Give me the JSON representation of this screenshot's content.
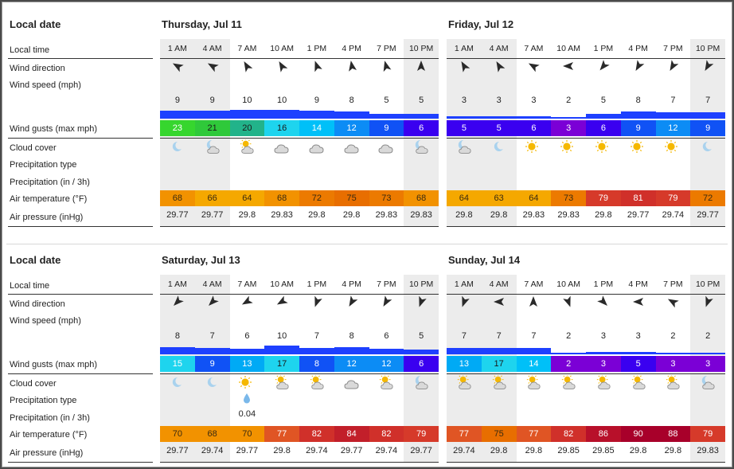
{
  "row_labels": {
    "local_date": "Local date",
    "local_time": "Local time",
    "wind_direction": "Wind direction",
    "wind_speed": "Wind speed  (mph)",
    "wind_gusts": "Wind gusts  (max mph)",
    "cloud_cover": "Cloud cover",
    "precip_type": "Precipitation type",
    "precipitation": "Precipitation  (in / 3h)",
    "air_temperature": "Air temperature  (°F)",
    "air_pressure": "Air pressure  (inHg)"
  },
  "hours": [
    "1 AM",
    "4 AM",
    "7 AM",
    "10 AM",
    "1 PM",
    "4 PM",
    "7 PM",
    "10 PM"
  ],
  "night_columns": [
    0,
    1,
    7
  ],
  "days": [
    {
      "title": "Thursday, Jul 11",
      "wind_dir_deg": [
        300,
        300,
        330,
        330,
        340,
        350,
        345,
        360
      ],
      "wind_speed": [
        "9",
        "9",
        "10",
        "10",
        "9",
        "8",
        "5",
        "5"
      ],
      "wind_speed_num": [
        9,
        9,
        10,
        10,
        9,
        8,
        5,
        5
      ],
      "wind_gusts": [
        "23",
        "21",
        "20",
        "16",
        "14",
        "12",
        "9",
        "6"
      ],
      "cloud": [
        "moon",
        "moon-cloud",
        "sun-cloud",
        "cloud",
        "cloud",
        "cloud",
        "cloud",
        "moon-cloud"
      ],
      "precip_type": [
        "",
        "",
        "",
        "",
        "",
        "",
        "",
        ""
      ],
      "precipitation": [
        "",
        "",
        "",
        "",
        "",
        "",
        "",
        ""
      ],
      "temperature": [
        "68",
        "66",
        "64",
        "68",
        "72",
        "75",
        "73",
        "68"
      ],
      "pressure": [
        "29.77",
        "29.77",
        "29.8",
        "29.83",
        "29.8",
        "29.8",
        "29.83",
        "29.83"
      ]
    },
    {
      "title": "Friday, Jul 12",
      "wind_dir_deg": [
        330,
        330,
        300,
        270,
        220,
        210,
        210,
        210
      ],
      "wind_speed": [
        "3",
        "3",
        "3",
        "2",
        "5",
        "8",
        "7",
        "7"
      ],
      "wind_speed_num": [
        3,
        3,
        3,
        2,
        5,
        8,
        7,
        7
      ],
      "wind_gusts": [
        "5",
        "5",
        "6",
        "3",
        "6",
        "9",
        "12",
        "9"
      ],
      "cloud": [
        "moon-cloud",
        "moon",
        "sun",
        "sun",
        "sun",
        "sun",
        "sun",
        "moon"
      ],
      "precip_type": [
        "",
        "",
        "",
        "",
        "",
        "",
        "",
        ""
      ],
      "precipitation": [
        "",
        "",
        "",
        "",
        "",
        "",
        "",
        ""
      ],
      "temperature": [
        "64",
        "63",
        "64",
        "73",
        "79",
        "81",
        "79",
        "72"
      ],
      "pressure": [
        "29.8",
        "29.8",
        "29.83",
        "29.83",
        "29.8",
        "29.77",
        "29.74",
        "29.77"
      ]
    },
    {
      "title": "Saturday, Jul 13",
      "wind_dir_deg": [
        225,
        225,
        240,
        240,
        200,
        210,
        210,
        200
      ],
      "wind_speed": [
        "8",
        "7",
        "6",
        "10",
        "7",
        "8",
        "6",
        "5"
      ],
      "wind_speed_num": [
        8,
        7,
        6,
        10,
        7,
        8,
        6,
        5
      ],
      "wind_gusts": [
        "15",
        "9",
        "13",
        "17",
        "8",
        "12",
        "12",
        "6"
      ],
      "cloud": [
        "moon",
        "moon",
        "sun",
        "sun-cloud",
        "sun-cloud",
        "cloud",
        "sun-cloud",
        "moon-cloud"
      ],
      "precip_type": [
        "",
        "",
        "drop",
        "",
        "",
        "",
        "",
        ""
      ],
      "precipitation": [
        "",
        "",
        "0.04",
        "",
        "",
        "",
        "",
        ""
      ],
      "temperature": [
        "70",
        "68",
        "70",
        "77",
        "82",
        "84",
        "82",
        "79"
      ],
      "pressure": [
        "29.77",
        "29.74",
        "29.77",
        "29.8",
        "29.74",
        "29.77",
        "29.74",
        "29.77"
      ]
    },
    {
      "title": "Sunday, Jul 14",
      "wind_dir_deg": [
        200,
        270,
        0,
        160,
        135,
        270,
        300,
        200
      ],
      "wind_speed": [
        "7",
        "7",
        "7",
        "2",
        "3",
        "3",
        "2",
        "2"
      ],
      "wind_speed_num": [
        7,
        7,
        7,
        2,
        3,
        3,
        2,
        2
      ],
      "wind_gusts": [
        "13",
        "17",
        "14",
        "2",
        "3",
        "5",
        "3",
        "3"
      ],
      "cloud": [
        "sun-cloud",
        "sun-cloud",
        "sun-cloud",
        "sun-cloud",
        "sun-cloud",
        "sun-cloud",
        "sun-cloud",
        "moon-cloud"
      ],
      "precip_type": [
        "",
        "",
        "",
        "",
        "",
        "",
        "",
        ""
      ],
      "precipitation": [
        "",
        "",
        "",
        "",
        "",
        "",
        "",
        ""
      ],
      "temperature": [
        "77",
        "75",
        "77",
        "82",
        "86",
        "90",
        "88",
        "79"
      ],
      "pressure": [
        "29.74",
        "29.8",
        "29.8",
        "29.85",
        "29.85",
        "29.8",
        "29.8",
        "29.83"
      ]
    }
  ],
  "colors": {
    "gust_scale": [
      {
        "max": 3,
        "bg": "#7b00d6"
      },
      {
        "max": 6,
        "bg": "#3a00f0"
      },
      {
        "max": 9,
        "bg": "#1052f5"
      },
      {
        "max": 12,
        "bg": "#0c8cf5"
      },
      {
        "max": 13,
        "bg": "#00aaf5"
      },
      {
        "max": 14,
        "bg": "#00c0f8"
      },
      {
        "max": 17,
        "bg": "#1ed4ee"
      },
      {
        "max": 20,
        "bg": "#22b38a"
      },
      {
        "max": 21,
        "bg": "#2fc93a"
      },
      {
        "max": 99,
        "bg": "#36d62e"
      }
    ],
    "temp_scale": [
      {
        "max": 67,
        "bg": "#f5a800"
      },
      {
        "max": 70,
        "bg": "#f29200"
      },
      {
        "max": 73,
        "bg": "#ec7a00"
      },
      {
        "max": 76,
        "bg": "#e86e00"
      },
      {
        "max": 78,
        "bg": "#e05524"
      },
      {
        "max": 80,
        "bg": "#d63a2a"
      },
      {
        "max": 82,
        "bg": "#d0302a"
      },
      {
        "max": 84,
        "bg": "#c21f2a"
      },
      {
        "max": 86,
        "bg": "#b8102a"
      },
      {
        "max": 99,
        "bg": "#a8002a"
      }
    ],
    "wind_bar": "#1e40ff"
  }
}
